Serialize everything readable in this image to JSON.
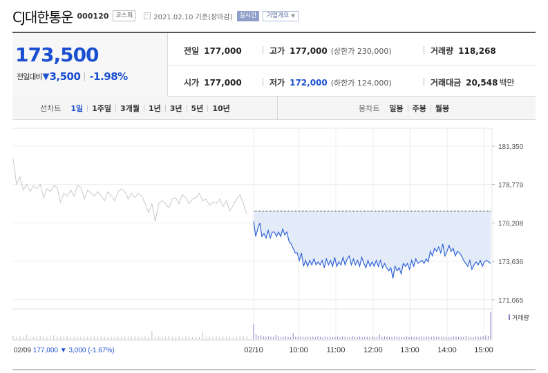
{
  "header": {
    "name": "CJ대한통운",
    "code": "000120",
    "market": "코스피",
    "date": "2021.02.10 기준(장마감)",
    "realtime": "실시간",
    "company_info": "기업개요"
  },
  "summary": {
    "price": "173,500",
    "change_label": "전일대비",
    "change_arrow": "▼",
    "change_amount": "3,500",
    "change_pct": "-1.98%",
    "prev_label": "전일",
    "prev_value": "177,000",
    "high_label": "고가",
    "high_value": "177,000",
    "upper_limit": "(상한가 230,000)",
    "volume_label": "거래량",
    "volume_value": "118,268",
    "open_label": "시가",
    "open_value": "177,000",
    "low_label": "저가",
    "low_value": "172,000",
    "lower_limit": "(하한가 124,000)",
    "amount_label": "거래대금",
    "amount_value": "20,548",
    "amount_unit": "백만"
  },
  "tabs": {
    "line_label": "선차트",
    "line_tabs": [
      "1일",
      "1주일",
      "3개월",
      "1년",
      "3년",
      "5년",
      "10년"
    ],
    "candle_label": "봉차트",
    "candle_tabs": [
      "일봉",
      "주봉",
      "월봉"
    ]
  },
  "chart_data": {
    "type": "line",
    "y_ticks": [
      "181,350",
      "178,779",
      "176,208",
      "173,636",
      "171,065"
    ],
    "y_tick_values": [
      181350,
      178779,
      176208,
      173636,
      171065
    ],
    "ylim": [
      170500,
      181900
    ],
    "x_ticks": [
      "02/10",
      "10:00",
      "11:00",
      "12:00",
      "13:00",
      "14:00",
      "15:00"
    ],
    "prev_close": 177000,
    "volume_label": "거래량",
    "prev_day_summary": {
      "date": "02/09",
      "close": "177,000",
      "arrow": "▼",
      "change": "3,000",
      "pct": "(-1.67%)"
    },
    "series": [
      {
        "values": [
          180500,
          178800,
          179300,
          178400,
          178800,
          178300,
          178700,
          178500,
          178800,
          177900,
          178500,
          178300,
          178700,
          178600,
          177600,
          178200,
          178000,
          178400,
          178000,
          178700,
          178600,
          177800,
          178400,
          178200,
          178000,
          178300,
          178000,
          177700,
          178300,
          178000,
          177700,
          178300,
          178500,
          178300,
          177800,
          178200,
          177900,
          178200,
          178000,
          177500,
          176900,
          177500,
          176300,
          177500,
          177700,
          177500,
          177200,
          177800,
          177900,
          177500,
          178100,
          177900,
          177500,
          177800,
          177900,
          178200,
          177700,
          177800,
          177400,
          177600,
          177500,
          177800,
          177300,
          177700,
          177000,
          177400,
          177800,
          178100,
          177500,
          176800
        ]
      },
      {
        "values": [
          176300,
          175300,
          175800,
          176200,
          175300,
          175500,
          175200,
          175700,
          175200,
          175600,
          175600,
          175300,
          175600,
          175300,
          175800,
          175400,
          175600,
          175000,
          174800,
          174500,
          174200,
          174200,
          173700,
          174200,
          173300,
          173700,
          173300,
          173700,
          173400,
          173800,
          173400,
          173600,
          173400,
          173700,
          173200,
          173800,
          173400,
          173700,
          173300,
          173900,
          173300,
          173600,
          173400,
          173900,
          173400,
          173800,
          174000,
          173400,
          173800,
          173400,
          173700,
          173300,
          173900,
          173500,
          173200,
          173700,
          173300,
          173600,
          173300,
          173700,
          173300,
          173700,
          173200,
          173500,
          173200,
          173000,
          173200,
          172500,
          173300,
          173000,
          173200,
          172800,
          173500,
          173300,
          173500,
          173100,
          173700,
          173300,
          173800,
          173500,
          173600,
          173700,
          173500,
          173800,
          173600,
          174300,
          174000,
          174500,
          174300,
          174600,
          174200,
          174800,
          174000,
          174300,
          174700,
          174300,
          174500,
          174000,
          174300,
          174200,
          174000,
          173700,
          173500,
          173300,
          173700,
          173100,
          173400,
          173600,
          173400,
          173700,
          173300,
          173600,
          173700,
          173600,
          173500
        ]
      }
    ],
    "volume": [
      0.12,
      0.08,
      0.1,
      0.08,
      0.15,
      0.09,
      0.08,
      0.1,
      0.12,
      0.09,
      0.08,
      0.11,
      0.14,
      0.1,
      0.08,
      0.09,
      0.11,
      0.08,
      0.09,
      0.1,
      0.08,
      0.09,
      0.1,
      0.08,
      0.08,
      0.09,
      0.1,
      0.08,
      0.08,
      0.09,
      0.08,
      0.1,
      0.09,
      0.08,
      0.08,
      0.09,
      0.1,
      0.08,
      0.08,
      0.09,
      0.08,
      0.3,
      0.09,
      0.1,
      0.08,
      0.08,
      0.12,
      0.09,
      0.08,
      0.1,
      0.08,
      0.09,
      0.1,
      0.08,
      0.09,
      0.08,
      0.28,
      0.09,
      0.1,
      0.08,
      0.09,
      0.08,
      0.1,
      0.08,
      0.1,
      0.08,
      0.09,
      0.1,
      0.12,
      0.09,
      0.55,
      0.18,
      0.12,
      0.14,
      0.1,
      0.08,
      0.1,
      0.09,
      0.08,
      0.15,
      0.1,
      0.08,
      0.09,
      0.1,
      0.08,
      0.08,
      0.22,
      0.09,
      0.1,
      0.08,
      0.09,
      0.08,
      0.1,
      0.08,
      0.09,
      0.08,
      0.1,
      0.09,
      0.08,
      0.1,
      0.08,
      0.09,
      0.08,
      0.08,
      0.09,
      0.08,
      0.1,
      0.09,
      0.08,
      0.08,
      0.12,
      0.09,
      0.08,
      0.1,
      0.08,
      0.09,
      0.08,
      0.08,
      0.1,
      0.08,
      0.09,
      0.18,
      0.08,
      0.1,
      0.09,
      0.08,
      0.08,
      0.09,
      0.1,
      0.08,
      0.09,
      0.08,
      0.1,
      0.08,
      0.09,
      0.08,
      0.08,
      0.09,
      0.1,
      0.08,
      0.09,
      0.08,
      0.08,
      0.1,
      0.08,
      0.09,
      0.08,
      0.1,
      0.09,
      0.08,
      0.08,
      0.09,
      0.1,
      0.08,
      0.09,
      0.08,
      0.12,
      0.08,
      0.09,
      0.08,
      0.1,
      0.08,
      0.09,
      0.11,
      0.14,
      0.12,
      1.0
    ]
  },
  "colors": {
    "up_down_blue": "#1b4fd1",
    "line_today": "#2f63d8",
    "line_prev": "#c8c8c8",
    "fill_today": "#e3ebf8",
    "volume_bar": "#8b78c8"
  }
}
